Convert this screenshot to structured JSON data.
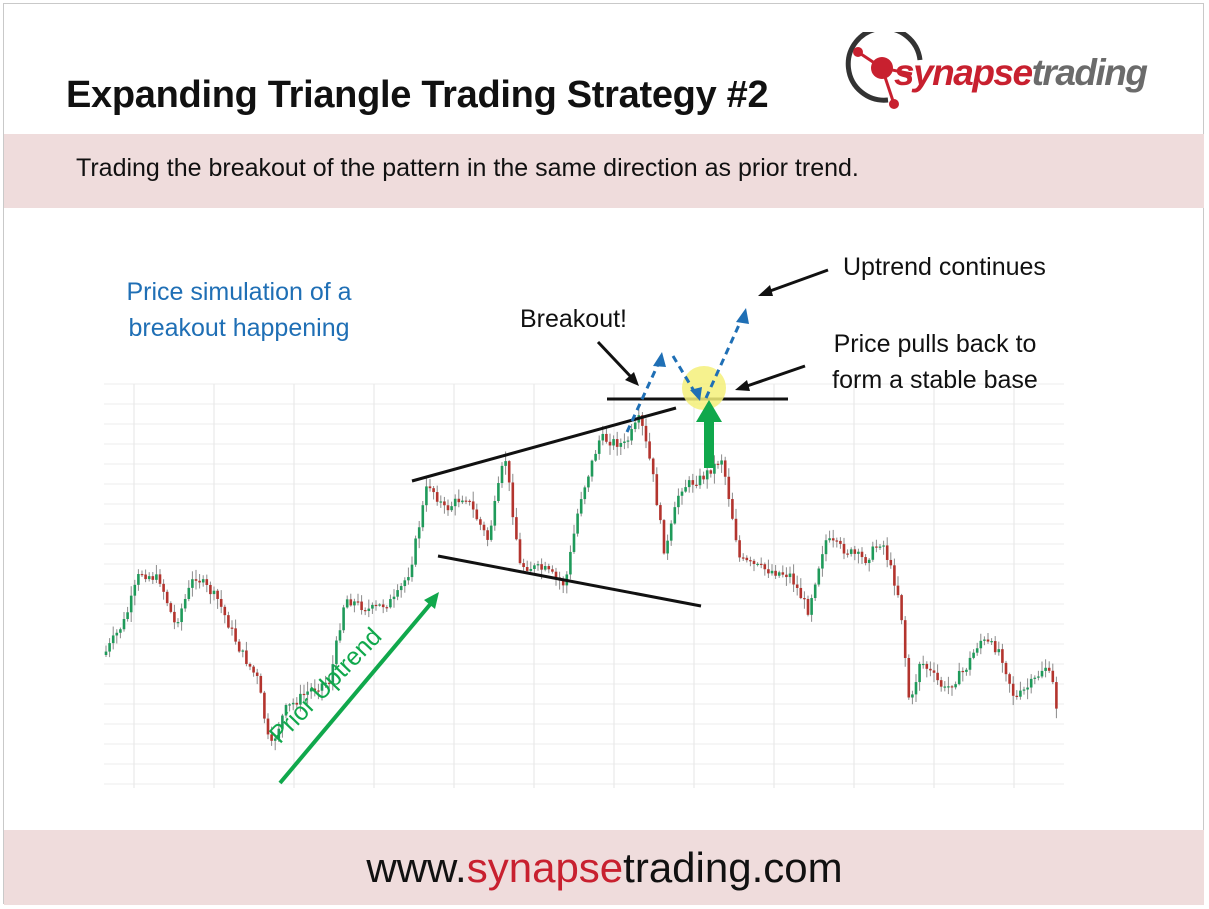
{
  "header": {
    "title": "Expanding Triangle Trading Strategy #2",
    "subtitle": "Trading the breakout of the pattern in the same direction as prior trend."
  },
  "logo": {
    "part1": "synapse",
    "part2": "trading",
    "colors": {
      "part1": "#c8202f",
      "part2": "#6b6b6b",
      "ring": "#333333",
      "node": "#c8202f"
    },
    "icon": "neuron-ring-icon"
  },
  "annotations": {
    "simulation_line1": "Price simulation of a",
    "simulation_line2": "breakout happening",
    "breakout": "Breakout!",
    "uptrend_continues": "Uptrend continues",
    "pullback_line1": "Price pulls back to",
    "pullback_line2": "form a stable base",
    "prior_uptrend": "Prior Uptrend"
  },
  "footer": {
    "prefix": "www.",
    "brand": "synapse",
    "suffix": "trading.com",
    "brand_color": "#c8202f"
  },
  "colors": {
    "band": "#efdcdc",
    "bull_candle": "#1f9a5a",
    "bear_candle": "#b3342e",
    "green_arrow": "#10a84c",
    "blue_dashed": "#1f6fb5",
    "highlight": "#f4f07a"
  }
}
